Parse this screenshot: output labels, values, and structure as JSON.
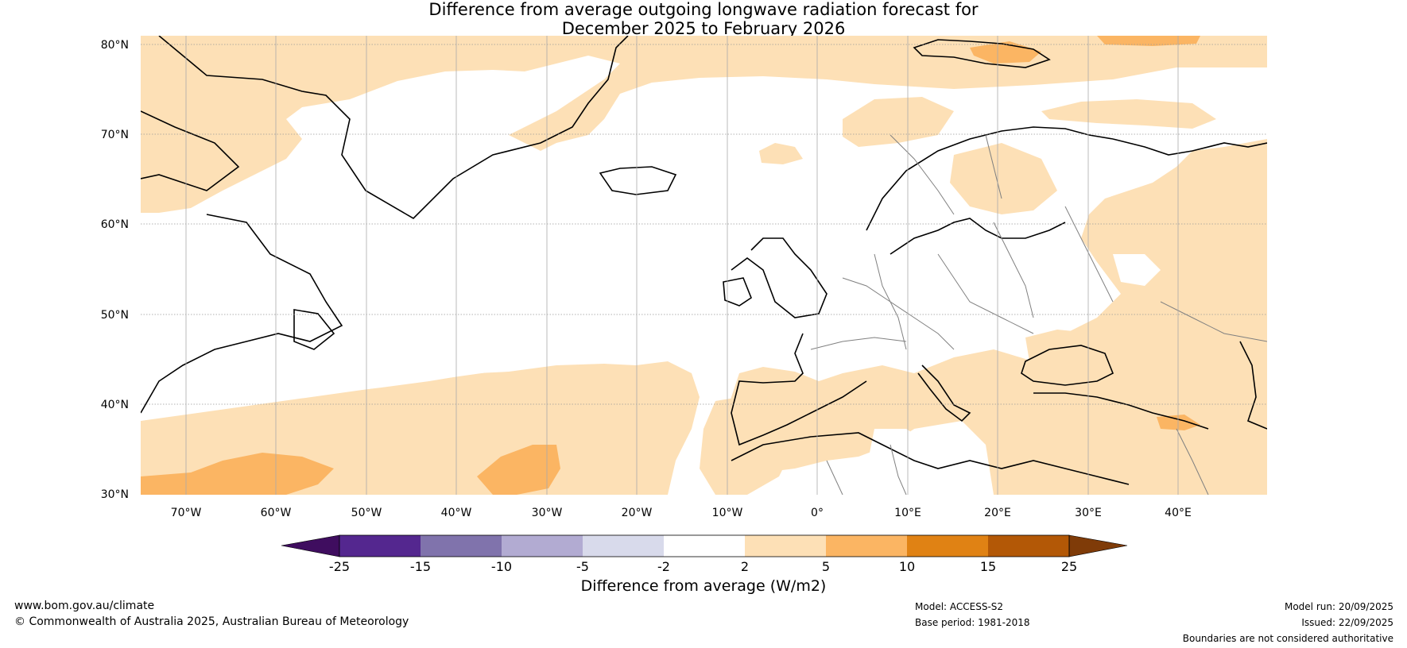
{
  "title": {
    "line1": "Difference from average outgoing longwave radiation forecast for",
    "line2": "December 2025 to February 2026"
  },
  "map": {
    "lat_labels": [
      "80°N",
      "70°N",
      "60°N",
      "50°N",
      "40°N",
      "30°N"
    ],
    "lon_labels": [
      "70°W",
      "60°W",
      "50°W",
      "40°W",
      "30°W",
      "20°W",
      "10°W",
      "0°",
      "10°E",
      "20°E",
      "30°E",
      "40°E"
    ],
    "colors": {
      "light_orange": "#fde0b6",
      "mid_orange": "#fbb563",
      "coast": "#000000",
      "borders": "#808080",
      "grid": "#999999"
    }
  },
  "colorbar": {
    "ticks": [
      "-25",
      "-15",
      "-10",
      "-5",
      "-2",
      "2",
      "5",
      "10",
      "15",
      "25"
    ],
    "colors": [
      "#3f0d5f",
      "#54278f",
      "#8073ac",
      "#b2abd2",
      "#d8daeb",
      "#ffffff",
      "#fde0b6",
      "#fbb563",
      "#e08214",
      "#b35806",
      "#7f3b08"
    ],
    "title": "Difference from average (W/m2)"
  },
  "footer": {
    "website": "www.bom.gov.au/climate",
    "copyright": "© Commonwealth of Australia 2025, Australian Bureau of Meteorology",
    "model": "Model: ACCESS-S2",
    "base_period": "Base period: 1981-2018",
    "model_run": "Model run: 20/09/2025",
    "issued": "Issued: 22/09/2025",
    "disclaimer": "Boundaries are not considered authoritative"
  }
}
